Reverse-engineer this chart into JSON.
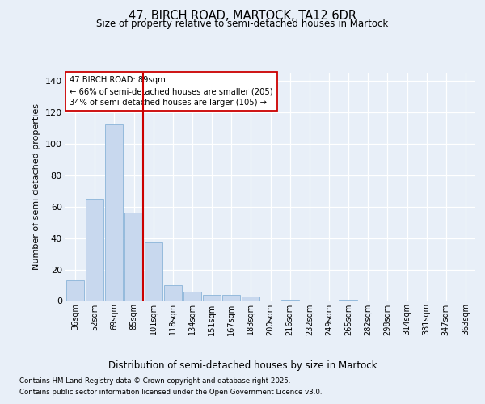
{
  "title1": "47, BIRCH ROAD, MARTOCK, TA12 6DR",
  "title2": "Size of property relative to semi-detached houses in Martock",
  "xlabel": "Distribution of semi-detached houses by size in Martock",
  "ylabel": "Number of semi-detached properties",
  "categories": [
    "36sqm",
    "52sqm",
    "69sqm",
    "85sqm",
    "101sqm",
    "118sqm",
    "134sqm",
    "151sqm",
    "167sqm",
    "183sqm",
    "200sqm",
    "216sqm",
    "232sqm",
    "249sqm",
    "265sqm",
    "282sqm",
    "298sqm",
    "314sqm",
    "331sqm",
    "347sqm",
    "363sqm"
  ],
  "values": [
    13,
    65,
    112,
    56,
    37,
    10,
    6,
    4,
    4,
    3,
    0,
    1,
    0,
    0,
    1,
    0,
    0,
    0,
    0,
    0,
    0
  ],
  "bar_color": "#c8d8ee",
  "bar_edge_color": "#8ab4d8",
  "vline_color": "#cc0000",
  "annotation_title": "47 BIRCH ROAD: 89sqm",
  "annotation_line1": "← 66% of semi-detached houses are smaller (205)",
  "annotation_line2": "34% of semi-detached houses are larger (105) →",
  "annotation_box_color": "#ffffff",
  "annotation_box_edge": "#cc0000",
  "ylim": [
    0,
    145
  ],
  "yticks": [
    0,
    20,
    40,
    60,
    80,
    100,
    120,
    140
  ],
  "footnote1": "Contains HM Land Registry data © Crown copyright and database right 2025.",
  "footnote2": "Contains public sector information licensed under the Open Government Licence v3.0.",
  "fig_bg_color": "#e8eff8",
  "plot_bg_color": "#e8eff8",
  "title1_fontsize": 10.5,
  "title2_fontsize": 8.5
}
